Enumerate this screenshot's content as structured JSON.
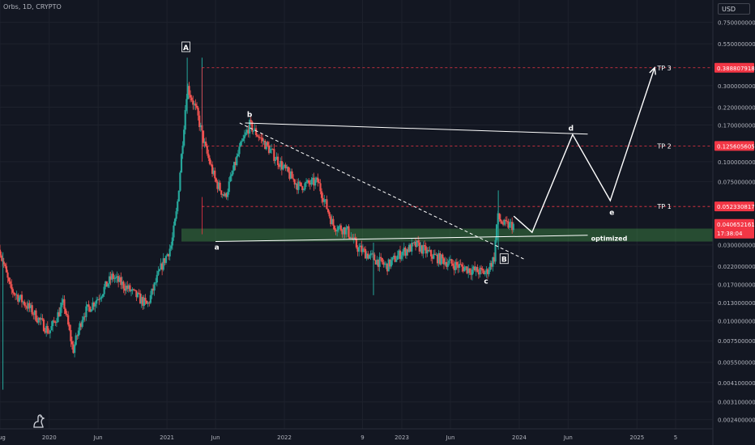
{
  "header": {
    "symbol": "Orbs, 1D, CRYPTO",
    "currency": "USD"
  },
  "colors": {
    "background": "#131722",
    "up": "#26a69a",
    "down": "#ef5350",
    "level_line": "#f23645",
    "zone_fill": "#4caf50",
    "text": "#b2b5be"
  },
  "chart_data": {
    "type": "candlestick",
    "title": "Orbs, 1D, CRYPTO",
    "scale": "log",
    "ylim": [
      0.0021,
      0.82
    ],
    "xlim": [
      "2019-08-01",
      "2025-08-25"
    ],
    "y_ticks": [
      0.75,
      0.55,
      0.3,
      0.22,
      0.17,
      0.1,
      0.075,
      0.03,
      0.022,
      0.017,
      0.013,
      0.01,
      0.0075,
      0.0055,
      0.0041,
      0.0031,
      0.0024
    ],
    "y_tick_labels": [
      "0.750000000",
      "0.550000000",
      "0.300000000",
      "0.220000000",
      "0.170000000",
      "0.100000000",
      "0.075000000",
      "0.030000000",
      "0.022000000",
      "0.017000000",
      "0.013000000",
      "0.010000000",
      "0.007500000",
      "0.005500000",
      "0.004100000",
      "0.003100000",
      "0.002400000"
    ],
    "x_ticks": [
      {
        "date": "2019-08-01",
        "label": "Aug"
      },
      {
        "date": "2020-01-01",
        "label": "2020"
      },
      {
        "date": "2020-06-01",
        "label": "Jun"
      },
      {
        "date": "2021-01-01",
        "label": "2021"
      },
      {
        "date": "2021-06-01",
        "label": "Jun"
      },
      {
        "date": "2022-01-01",
        "label": "2022"
      },
      {
        "date": "2022-09-01",
        "label": "9"
      },
      {
        "date": "2023-01-01",
        "label": "2023"
      },
      {
        "date": "2023-06-01",
        "label": "Jun"
      },
      {
        "date": "2024-01-01",
        "label": "2024"
      },
      {
        "date": "2024-06-01",
        "label": "Jun"
      },
      {
        "date": "2025-01-01",
        "label": "2025"
      },
      {
        "date": "2025-05-01",
        "label": "5"
      }
    ],
    "price_path": [
      [
        "2019-08-01",
        0.028
      ],
      [
        "2019-09-01",
        0.016
      ],
      [
        "2019-11-01",
        0.012
      ],
      [
        "2020-01-01",
        0.0085
      ],
      [
        "2020-02-15",
        0.013
      ],
      [
        "2020-03-15",
        0.0065
      ],
      [
        "2020-04-15",
        0.011
      ],
      [
        "2020-06-01",
        0.014
      ],
      [
        "2020-07-15",
        0.019
      ],
      [
        "2020-09-01",
        0.016
      ],
      [
        "2020-11-01",
        0.0125
      ],
      [
        "2020-12-15",
        0.022
      ],
      [
        "2021-01-15",
        0.03
      ],
      [
        "2021-02-01",
        0.05
      ],
      [
        "2021-03-05",
        0.3
      ],
      [
        "2021-04-05",
        0.2
      ],
      [
        "2021-05-01",
        0.12
      ],
      [
        "2021-06-01",
        0.075
      ],
      [
        "2021-07-01",
        0.06
      ],
      [
        "2021-08-15",
        0.12
      ],
      [
        "2021-09-15",
        0.17
      ],
      [
        "2021-11-01",
        0.13
      ],
      [
        "2022-01-01",
        0.09
      ],
      [
        "2022-02-15",
        0.07
      ],
      [
        "2022-04-15",
        0.075
      ],
      [
        "2022-06-01",
        0.04
      ],
      [
        "2022-07-15",
        0.037
      ],
      [
        "2022-08-15",
        0.029
      ],
      [
        "2022-10-01",
        0.025
      ],
      [
        "2022-11-15",
        0.022
      ],
      [
        "2023-01-01",
        0.027
      ],
      [
        "2023-02-15",
        0.03
      ],
      [
        "2023-04-01",
        0.026
      ],
      [
        "2023-06-01",
        0.023
      ],
      [
        "2023-08-01",
        0.021
      ],
      [
        "2023-09-20",
        0.02
      ],
      [
        "2023-10-15",
        0.025
      ],
      [
        "2023-10-25",
        0.045
      ],
      [
        "2023-11-15",
        0.04
      ],
      [
        "2023-12-15",
        0.04
      ]
    ],
    "levels": [
      {
        "label": "TP 3",
        "value": 0.388807918,
        "tag": "0.388807918"
      },
      {
        "label": "TP 2",
        "value": 0.125605605,
        "tag": "0.125605605"
      },
      {
        "label": "TP 1",
        "value": 0.052330817,
        "tag": "0.052330817"
      }
    ],
    "current_price": {
      "value": 0.040652161,
      "tag": "0.040652161",
      "countdown": "17:38:04"
    },
    "zone": {
      "label": "optimized",
      "low": 0.0315,
      "high": 0.038
    },
    "wave_labels": [
      {
        "label": "A",
        "date": "2021-03-01",
        "value": 0.52,
        "boxed": true
      },
      {
        "label": "a",
        "date": "2021-06-05",
        "value": 0.029,
        "boxed": false
      },
      {
        "label": "b",
        "date": "2021-09-15",
        "value": 0.198,
        "boxed": false
      },
      {
        "label": "c",
        "date": "2023-09-20",
        "value": 0.0178,
        "boxed": false
      },
      {
        "label": "B",
        "date": "2023-11-15",
        "value": 0.0243,
        "boxed": true
      },
      {
        "label": "d",
        "date": "2024-06-10",
        "value": 0.162,
        "boxed": false
      },
      {
        "label": "e",
        "date": "2024-10-15",
        "value": 0.048,
        "boxed": false
      }
    ],
    "projection": [
      [
        "2023-12-15",
        0.0455
      ],
      [
        "2024-02-10",
        0.036
      ],
      [
        "2024-06-15",
        0.148
      ],
      [
        "2024-10-10",
        0.057
      ],
      [
        "2025-02-25",
        0.39
      ]
    ],
    "trendlines": [
      {
        "from": [
          "2021-09-01",
          0.175
        ],
        "to": [
          "2024-08-01",
          0.149
        ],
        "dashed": false
      },
      {
        "from": [
          "2021-06-01",
          0.0315
        ],
        "to": [
          "2024-08-01",
          0.0345
        ],
        "dashed": false
      },
      {
        "from": [
          "2021-08-15",
          0.175
        ],
        "to": [
          "2024-01-15",
          0.0245
        ],
        "dashed": true
      }
    ]
  }
}
